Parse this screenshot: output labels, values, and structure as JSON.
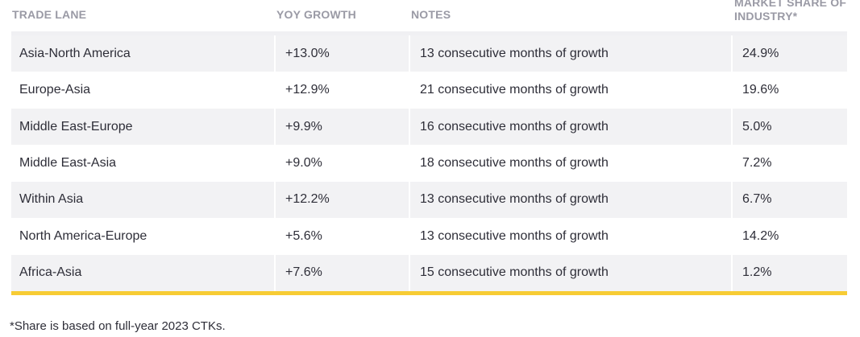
{
  "table": {
    "headers": {
      "trade_lane": "TRADE LANE",
      "yoy_growth": "YOY GROWTH",
      "notes": "NOTES",
      "market_share": "MARKET SHARE OF INDUSTRY*"
    },
    "rows": [
      {
        "lane": "Asia-North America",
        "growth": "+13.0%",
        "notes": "13 consecutive months of growth",
        "share": "24.9%"
      },
      {
        "lane": "Europe-Asia",
        "growth": "+12.9%",
        "notes": "21 consecutive months of growth",
        "share": "19.6%"
      },
      {
        "lane": "Middle East-Europe",
        "growth": "+9.9%",
        "notes": "16 consecutive months of growth",
        "share": "5.0%"
      },
      {
        "lane": "Middle East-Asia",
        "growth": "+9.0%",
        "notes": "18 consecutive months of growth",
        "share": "7.2%"
      },
      {
        "lane": "Within Asia",
        "growth": "+12.2%",
        "notes": "13 consecutive months of growth",
        "share": "6.7%"
      },
      {
        "lane": "North America-Europe",
        "growth": "+5.6%",
        "notes": "13 consecutive months of growth",
        "share": "14.2%"
      },
      {
        "lane": "Africa-Asia",
        "growth": "+7.6%",
        "notes": "15 consecutive months of growth",
        "share": "1.2%"
      }
    ]
  },
  "footnote": "*Share is based on full-year 2023 CTKs.",
  "colors": {
    "accent_rule": "#f7cc34",
    "header_text": "#9a9aa5",
    "row_alt": "#f2f2f4",
    "body_text": "#2e2e38"
  }
}
